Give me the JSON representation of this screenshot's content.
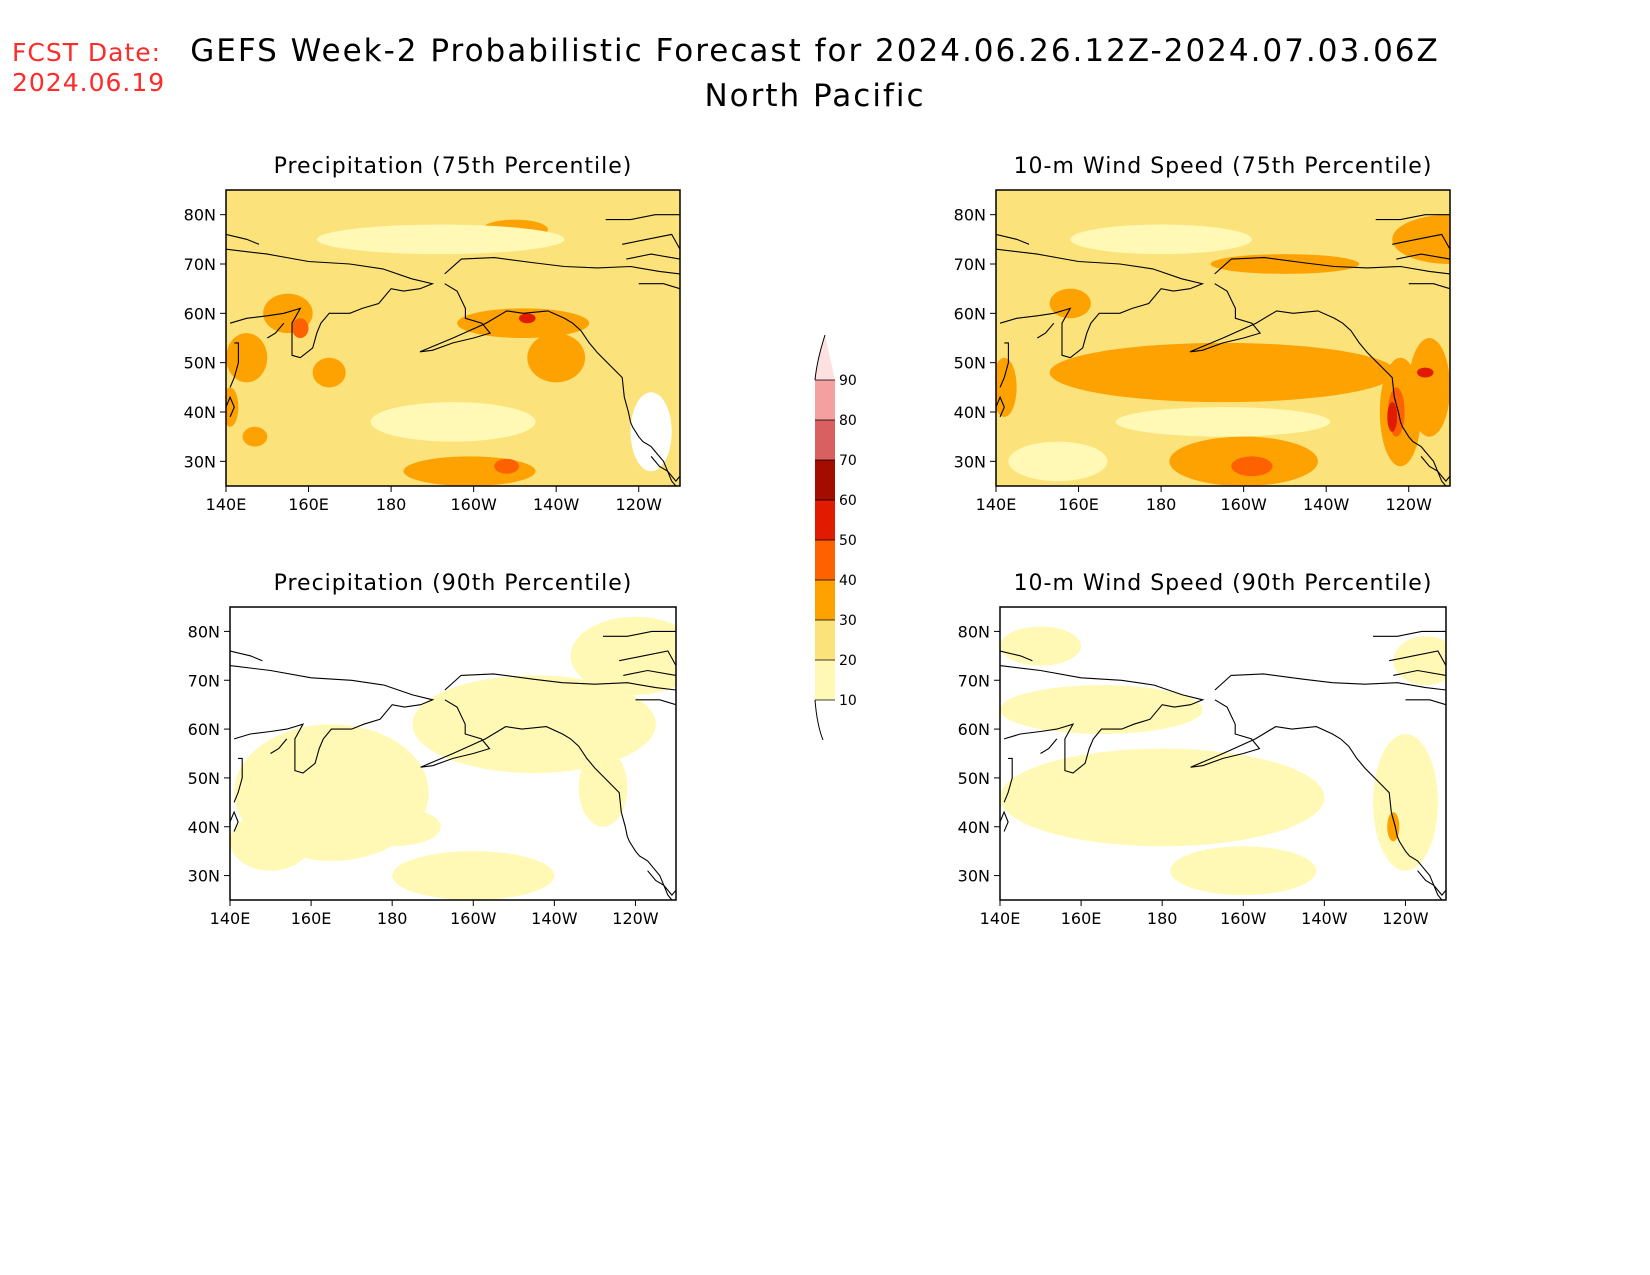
{
  "header": {
    "fcst_label": "FCST Date:",
    "fcst_date": "2024.06.19",
    "title": "GEFS Week-2 Probabilistic Forecast for 2024.06.26.12Z-2024.07.03.06Z",
    "region": "North Pacific"
  },
  "axes": {
    "lon_labels": [
      "140E",
      "160E",
      "180",
      "160W",
      "140W",
      "120W"
    ],
    "lat_labels": [
      "80N",
      "70N",
      "60N",
      "50N",
      "40N",
      "30N"
    ]
  },
  "panels": [
    {
      "id": "precip75",
      "title": "Precipitation (75th Percentile)",
      "fill_level": 20
    },
    {
      "id": "wind75",
      "title": "10-m Wind Speed (75th Percentile)",
      "fill_level": 20
    },
    {
      "id": "precip90",
      "title": "Precipitation (90th Percentile)",
      "fill_level": 10
    },
    {
      "id": "wind90",
      "title": "10-m Wind Speed (90th Percentile)",
      "fill_level": 10
    }
  ],
  "colorbar": {
    "levels": [
      "10",
      "20",
      "30",
      "40",
      "50",
      "60",
      "70",
      "80",
      "90"
    ],
    "colors": [
      "#fff9b5",
      "#fce27a",
      "#fda200",
      "#fe6100",
      "#e01b00",
      "#a30d00",
      "#d96060",
      "#f4a0a0",
      "#fde0e0"
    ]
  },
  "chart_data": {
    "type": "heatmap",
    "title": "GEFS Week-2 Probabilistic Forecast for 2024.06.26.12Z-2024.07.03.06Z",
    "subtitle": "North Pacific",
    "x_ticks": [
      "140E",
      "160E",
      "180",
      "160W",
      "140W",
      "120W"
    ],
    "y_ticks": [
      "80N",
      "70N",
      "60N",
      "50N",
      "40N",
      "30N"
    ],
    "lon_range": [
      140,
      250
    ],
    "lat_range": [
      25,
      85
    ],
    "levels": [
      10,
      20,
      30,
      40,
      50,
      60,
      70,
      80,
      90
    ],
    "colors": [
      "#fff9b5",
      "#fce27a",
      "#fda200",
      "#fe6100",
      "#e01b00",
      "#a30d00",
      "#d96060",
      "#f4a0a0",
      "#fde0e0"
    ],
    "panels": [
      {
        "title": "Precipitation (75th Percentile)",
        "background": 20,
        "blobs": [
          {
            "lon": 212,
            "lat": 58,
            "rx": 16,
            "ry": 3,
            "v": 30
          },
          {
            "lon": 213,
            "lat": 59,
            "rx": 2,
            "ry": 1,
            "v": 50
          },
          {
            "lon": 220,
            "lat": 51,
            "rx": 7,
            "ry": 5,
            "v": 30
          },
          {
            "lon": 199,
            "lat": 28,
            "rx": 16,
            "ry": 3,
            "v": 30
          },
          {
            "lon": 208,
            "lat": 29,
            "rx": 3,
            "ry": 1.5,
            "v": 40
          },
          {
            "lon": 155,
            "lat": 60,
            "rx": 6,
            "ry": 4,
            "v": 30
          },
          {
            "lon": 158,
            "lat": 57,
            "rx": 2,
            "ry": 2,
            "v": 40
          },
          {
            "lon": 145,
            "lat": 51,
            "rx": 5,
            "ry": 5,
            "v": 30
          },
          {
            "lon": 165,
            "lat": 48,
            "rx": 4,
            "ry": 3,
            "v": 30
          },
          {
            "lon": 147,
            "lat": 35,
            "rx": 3,
            "ry": 2,
            "v": 30
          },
          {
            "lon": 210,
            "lat": 77,
            "rx": 8,
            "ry": 2,
            "v": 30
          },
          {
            "lon": 141,
            "lat": 41,
            "rx": 2,
            "ry": 4,
            "v": 30
          },
          {
            "lon": 192,
            "lat": 75,
            "rx": 30,
            "ry": 3,
            "v": 10
          },
          {
            "lon": 195,
            "lat": 38,
            "rx": 20,
            "ry": 4,
            "v": 10
          },
          {
            "lon": 243,
            "lat": 36,
            "rx": 5,
            "ry": 8,
            "v": 0
          }
        ]
      },
      {
        "title": "10-m Wind Speed (75th Percentile)",
        "background": 20,
        "blobs": [
          {
            "lon": 195,
            "lat": 48,
            "rx": 42,
            "ry": 6,
            "v": 30
          },
          {
            "lon": 200,
            "lat": 30,
            "rx": 18,
            "ry": 5,
            "v": 30
          },
          {
            "lon": 202,
            "lat": 29,
            "rx": 5,
            "ry": 2,
            "v": 40
          },
          {
            "lon": 238,
            "lat": 40,
            "rx": 5,
            "ry": 11,
            "v": 30
          },
          {
            "lon": 237,
            "lat": 40,
            "rx": 2,
            "ry": 5,
            "v": 40
          },
          {
            "lon": 236,
            "lat": 39,
            "rx": 1.2,
            "ry": 3,
            "v": 50
          },
          {
            "lon": 245,
            "lat": 45,
            "rx": 5,
            "ry": 10,
            "v": 30
          },
          {
            "lon": 244,
            "lat": 48,
            "rx": 2,
            "ry": 1,
            "v": 50
          },
          {
            "lon": 210,
            "lat": 70,
            "rx": 18,
            "ry": 2,
            "v": 30
          },
          {
            "lon": 250,
            "lat": 75,
            "rx": 14,
            "ry": 5,
            "v": 30
          },
          {
            "lon": 142,
            "lat": 45,
            "rx": 3,
            "ry": 6,
            "v": 30
          },
          {
            "lon": 158,
            "lat": 62,
            "rx": 5,
            "ry": 3,
            "v": 30
          },
          {
            "lon": 180,
            "lat": 75,
            "rx": 22,
            "ry": 3,
            "v": 10
          },
          {
            "lon": 195,
            "lat": 38,
            "rx": 26,
            "ry": 3,
            "v": 10
          },
          {
            "lon": 155,
            "lat": 30,
            "rx": 12,
            "ry": 4,
            "v": 10
          }
        ]
      },
      {
        "title": "Precipitation (90th Percentile)",
        "background": 0,
        "blobs": [
          {
            "lon": 165,
            "lat": 47,
            "rx": 24,
            "ry": 14,
            "v": 10
          },
          {
            "lon": 215,
            "lat": 61,
            "rx": 30,
            "ry": 10,
            "v": 10
          },
          {
            "lon": 240,
            "lat": 75,
            "rx": 16,
            "ry": 8,
            "v": 10
          },
          {
            "lon": 200,
            "lat": 30,
            "rx": 20,
            "ry": 5,
            "v": 10
          },
          {
            "lon": 180,
            "lat": 40,
            "rx": 12,
            "ry": 4,
            "v": 10
          },
          {
            "lon": 150,
            "lat": 37,
            "rx": 10,
            "ry": 6,
            "v": 10
          },
          {
            "lon": 232,
            "lat": 48,
            "rx": 6,
            "ry": 8,
            "v": 10
          }
        ]
      },
      {
        "title": "10-m Wind Speed (90th Percentile)",
        "background": 0,
        "blobs": [
          {
            "lon": 180,
            "lat": 46,
            "rx": 40,
            "ry": 10,
            "v": 10
          },
          {
            "lon": 200,
            "lat": 31,
            "rx": 18,
            "ry": 5,
            "v": 10
          },
          {
            "lon": 240,
            "lat": 45,
            "rx": 8,
            "ry": 14,
            "v": 10
          },
          {
            "lon": 237,
            "lat": 40,
            "rx": 1.5,
            "ry": 3,
            "v": 30
          },
          {
            "lon": 165,
            "lat": 64,
            "rx": 25,
            "ry": 5,
            "v": 10
          },
          {
            "lon": 150,
            "lat": 77,
            "rx": 10,
            "ry": 4,
            "v": 10
          },
          {
            "lon": 245,
            "lat": 74,
            "rx": 8,
            "ry": 5,
            "v": 10
          }
        ]
      }
    ]
  }
}
